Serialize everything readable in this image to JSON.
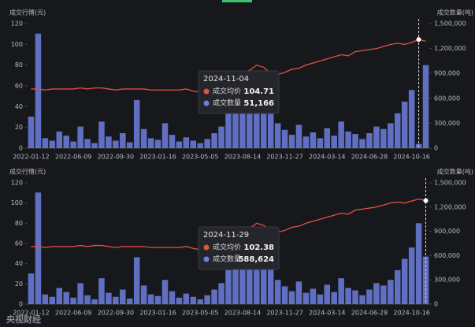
{
  "chart_data": [
    {
      "type": "bar-line",
      "ylabel": "成交行情(元)",
      "y2label": "成交数量(吨)",
      "categories": [
        "2022-01-12",
        null,
        null,
        null,
        null,
        null,
        "2022-06-09",
        null,
        null,
        null,
        null,
        null,
        "2022-09-30",
        null,
        null,
        null,
        null,
        null,
        "2023-01-16",
        null,
        null,
        null,
        null,
        null,
        "2023-05-05",
        null,
        null,
        null,
        null,
        null,
        "2023-08-14",
        null,
        null,
        null,
        null,
        null,
        "2023-11-27",
        null,
        null,
        null,
        null,
        null,
        "2024-03-14",
        null,
        null,
        null,
        null,
        null,
        "2024-06-28",
        null,
        null,
        null,
        null,
        null,
        "2024-10-16",
        null,
        null
      ],
      "series": [
        {
          "name": "成交均价",
          "color": "#e0533f",
          "type": "line",
          "values": [
            57,
            57,
            56,
            57,
            57,
            57,
            57,
            58,
            57,
            58,
            58,
            57,
            56,
            57,
            57,
            57,
            57,
            56,
            56,
            56,
            56,
            56,
            57,
            55,
            54,
            55,
            57,
            62,
            66,
            70,
            72,
            75,
            80,
            78,
            72,
            71,
            73,
            76,
            77,
            80,
            82,
            84,
            86,
            88,
            90,
            89,
            93,
            94,
            95,
            96,
            98,
            100,
            101,
            100,
            102,
            104.71,
            103
          ]
        },
        {
          "name": "成交数量",
          "color": "#6f7fe0",
          "type": "bar",
          "axis": "y2",
          "values": [
            380000,
            1380000,
            120000,
            90000,
            200000,
            150000,
            80000,
            260000,
            110000,
            60000,
            320000,
            140000,
            90000,
            180000,
            70000,
            580000,
            230000,
            120000,
            100000,
            300000,
            160000,
            80000,
            130000,
            90000,
            60000,
            110000,
            180000,
            260000,
            420000,
            520000,
            600000,
            680000,
            720000,
            640000,
            560000,
            300000,
            220000,
            160000,
            280000,
            140000,
            190000,
            120000,
            240000,
            150000,
            320000,
            200000,
            170000,
            110000,
            180000,
            260000,
            230000,
            300000,
            420000,
            560000,
            700000,
            51166,
            1000000
          ]
        }
      ],
      "ylim": [
        0,
        120
      ],
      "yticks": [
        0,
        20,
        40,
        60,
        80,
        100,
        120
      ],
      "y2lim": [
        0,
        1500000
      ],
      "y2ticks": [
        0,
        {
          "value": 300000,
          "label": "300,000"
        },
        {
          "value": 600000,
          "label": "600,000"
        },
        {
          "value": 900000,
          "label": "900,000"
        },
        {
          "value": 1200000,
          "label": "1,200,000"
        },
        {
          "value": 1500000,
          "label": "1,500,000"
        }
      ],
      "tooltip": {
        "label": "2024-11-04",
        "values": [
          104.71,
          51166
        ],
        "value_labels": [
          "104.71",
          "51,166"
        ]
      }
    },
    {
      "type": "bar-line",
      "ylabel": "成交行情(元)",
      "y2label": "成交数量(吨)",
      "categories": [
        "2022-01-12",
        null,
        null,
        null,
        null,
        null,
        "2022-06-09",
        null,
        null,
        null,
        null,
        null,
        "2022-09-30",
        null,
        null,
        null,
        null,
        null,
        "2023-01-16",
        null,
        null,
        null,
        null,
        null,
        "2023-05-05",
        null,
        null,
        null,
        null,
        null,
        "2023-08-14",
        null,
        null,
        null,
        null,
        null,
        "2023-11-27",
        null,
        null,
        null,
        null,
        null,
        "2024-03-14",
        null,
        null,
        null,
        null,
        null,
        "2024-06-28",
        null,
        null,
        null,
        null,
        null,
        "2024-10-16",
        null,
        null
      ],
      "series": [
        {
          "name": "成交均价",
          "color": "#e0533f",
          "type": "line",
          "values": [
            57,
            57,
            56,
            57,
            57,
            57,
            57,
            58,
            57,
            58,
            58,
            57,
            56,
            57,
            57,
            57,
            57,
            56,
            56,
            56,
            56,
            56,
            57,
            55,
            54,
            55,
            57,
            62,
            66,
            70,
            72,
            75,
            80,
            78,
            72,
            71,
            73,
            76,
            77,
            80,
            82,
            84,
            86,
            88,
            90,
            89,
            93,
            94,
            95,
            96,
            98,
            100,
            101,
            100,
            102,
            104,
            102.38
          ]
        },
        {
          "name": "成交数量",
          "color": "#6f7fe0",
          "type": "bar",
          "axis": "y2",
          "values": [
            380000,
            1380000,
            120000,
            90000,
            200000,
            150000,
            80000,
            260000,
            110000,
            60000,
            320000,
            140000,
            90000,
            180000,
            70000,
            580000,
            230000,
            120000,
            100000,
            300000,
            160000,
            80000,
            130000,
            90000,
            60000,
            110000,
            180000,
            260000,
            420000,
            520000,
            600000,
            680000,
            720000,
            640000,
            560000,
            300000,
            220000,
            160000,
            280000,
            140000,
            190000,
            120000,
            240000,
            150000,
            320000,
            200000,
            170000,
            110000,
            180000,
            260000,
            230000,
            300000,
            420000,
            560000,
            700000,
            1000000,
            588624
          ]
        }
      ],
      "ylim": [
        0,
        120
      ],
      "yticks": [
        0,
        20,
        40,
        60,
        80,
        100,
        120
      ],
      "y2lim": [
        0,
        1500000
      ],
      "y2ticks": [
        0,
        {
          "value": 300000,
          "label": "300,000"
        },
        {
          "value": 600000,
          "label": "600,000"
        },
        {
          "value": 900000,
          "label": "900,000"
        },
        {
          "value": 1200000,
          "label": "1,200,000"
        },
        {
          "value": 1500000,
          "label": "1,500,000"
        }
      ],
      "tooltip": {
        "label": "2024-11-29",
        "values": [
          102.38,
          588624
        ],
        "value_labels": [
          "102.38",
          "588,624"
        ]
      }
    }
  ],
  "watermark": "央视财经"
}
